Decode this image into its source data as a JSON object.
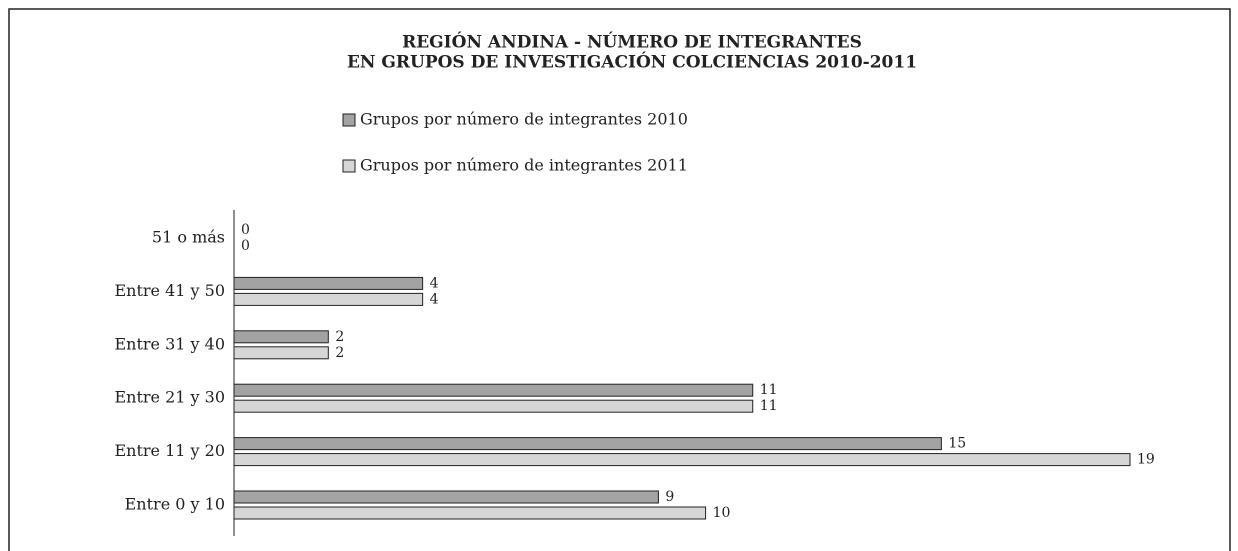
{
  "chart_data": {
    "type": "hbar",
    "title": [
      "REGIÓN ANDINA - NÚMERO DE INTEGRANTES",
      "EN GRUPOS DE INVESTIGACIÓN COLCIENCIAS 2010-2011"
    ],
    "categories": [
      "51 o más",
      "Entre 41 y 50",
      "Entre 31 y 40",
      "Entre 21 y 30",
      "Entre 11 y 20",
      "Entre 0 y 10"
    ],
    "series": [
      {
        "name": "Grupos por número de integrantes 2010",
        "color": "#a3a3a3",
        "values": [
          0,
          4,
          2,
          11,
          15,
          9
        ]
      },
      {
        "name": "Grupos por número de integrantes 2011",
        "color": "#d6d6d6",
        "values": [
          0,
          4,
          2,
          11,
          19,
          10
        ]
      }
    ],
    "xlim": [
      0,
      19
    ]
  }
}
